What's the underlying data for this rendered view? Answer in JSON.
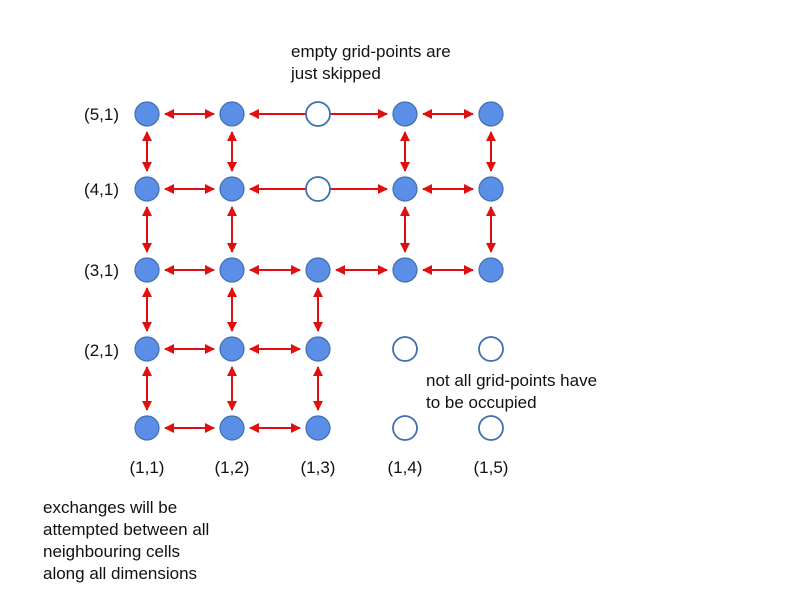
{
  "colors": {
    "node_fill": "#5b8ee6",
    "node_stroke": "#3f6fb0",
    "empty_stroke": "#3f6fb0",
    "arrow": "#e01010"
  },
  "grid": {
    "row_labels": [
      "(5,1)",
      "(4,1)",
      "(3,1)",
      "(2,1)"
    ],
    "col_labels": [
      "(1,1)",
      "(1,2)",
      "(1,3)",
      "(1,4)",
      "(1,5)"
    ],
    "rows": [
      [
        "filled",
        "filled",
        "empty",
        "filled",
        "filled"
      ],
      [
        "filled",
        "filled",
        "empty",
        "filled",
        "filled"
      ],
      [
        "filled",
        "filled",
        "filled",
        "filled",
        "filled"
      ],
      [
        "filled",
        "filled",
        "filled",
        "empty",
        "empty"
      ],
      [
        "filled",
        "filled",
        "filled",
        "empty",
        "empty"
      ]
    ],
    "horizontal_links": [
      {
        "row": 0,
        "from": 0,
        "to": 1
      },
      {
        "row": 0,
        "from": 1,
        "to": 3
      },
      {
        "row": 0,
        "from": 3,
        "to": 4
      },
      {
        "row": 1,
        "from": 0,
        "to": 1
      },
      {
        "row": 1,
        "from": 1,
        "to": 3
      },
      {
        "row": 1,
        "from": 3,
        "to": 4
      },
      {
        "row": 2,
        "from": 0,
        "to": 1
      },
      {
        "row": 2,
        "from": 1,
        "to": 2
      },
      {
        "row": 2,
        "from": 2,
        "to": 3
      },
      {
        "row": 2,
        "from": 3,
        "to": 4
      },
      {
        "row": 3,
        "from": 0,
        "to": 1
      },
      {
        "row": 3,
        "from": 1,
        "to": 2
      },
      {
        "row": 4,
        "from": 0,
        "to": 1
      },
      {
        "row": 4,
        "from": 1,
        "to": 2
      }
    ],
    "vertical_links": [
      {
        "col": 0,
        "from": 0,
        "to": 1
      },
      {
        "col": 0,
        "from": 1,
        "to": 2
      },
      {
        "col": 0,
        "from": 2,
        "to": 3
      },
      {
        "col": 0,
        "from": 3,
        "to": 4
      },
      {
        "col": 1,
        "from": 0,
        "to": 1
      },
      {
        "col": 1,
        "from": 1,
        "to": 2
      },
      {
        "col": 1,
        "from": 2,
        "to": 3
      },
      {
        "col": 1,
        "from": 3,
        "to": 4
      },
      {
        "col": 2,
        "from": 2,
        "to": 3
      },
      {
        "col": 2,
        "from": 3,
        "to": 4
      },
      {
        "col": 3,
        "from": 0,
        "to": 1
      },
      {
        "col": 3,
        "from": 1,
        "to": 2
      },
      {
        "col": 4,
        "from": 0,
        "to": 1
      },
      {
        "col": 4,
        "from": 1,
        "to": 2
      }
    ]
  },
  "notes": {
    "empty_skipped": [
      "empty grid-points are",
      "just skipped"
    ],
    "not_all_occupied": [
      "not all grid-points have",
      "to be occupied"
    ],
    "exchanges": [
      "exchanges will be",
      "attempted between all",
      "neighbouring cells",
      "along all dimensions"
    ]
  }
}
